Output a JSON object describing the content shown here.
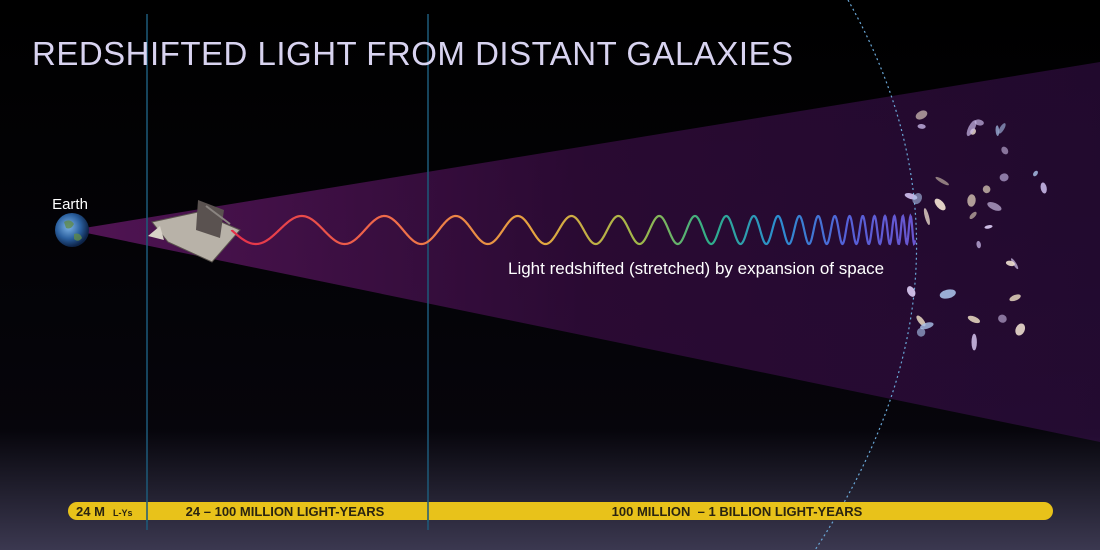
{
  "header": {
    "title": "REDSHIFTED LIGHT FROM DISTANT GALAXIES"
  },
  "labels": {
    "earth": "Earth",
    "caption": "Light redshifted (stretched) by expansion of space"
  },
  "scale_bar": {
    "segments": [
      {
        "label": "24 M",
        "unit": "L-Ys"
      },
      {
        "label": "24 – 100 MILLION LIGHT-YEARS"
      },
      {
        "label": "100 MILLION  – 1 BILLION LIGHT-YEARS"
      }
    ]
  }
}
